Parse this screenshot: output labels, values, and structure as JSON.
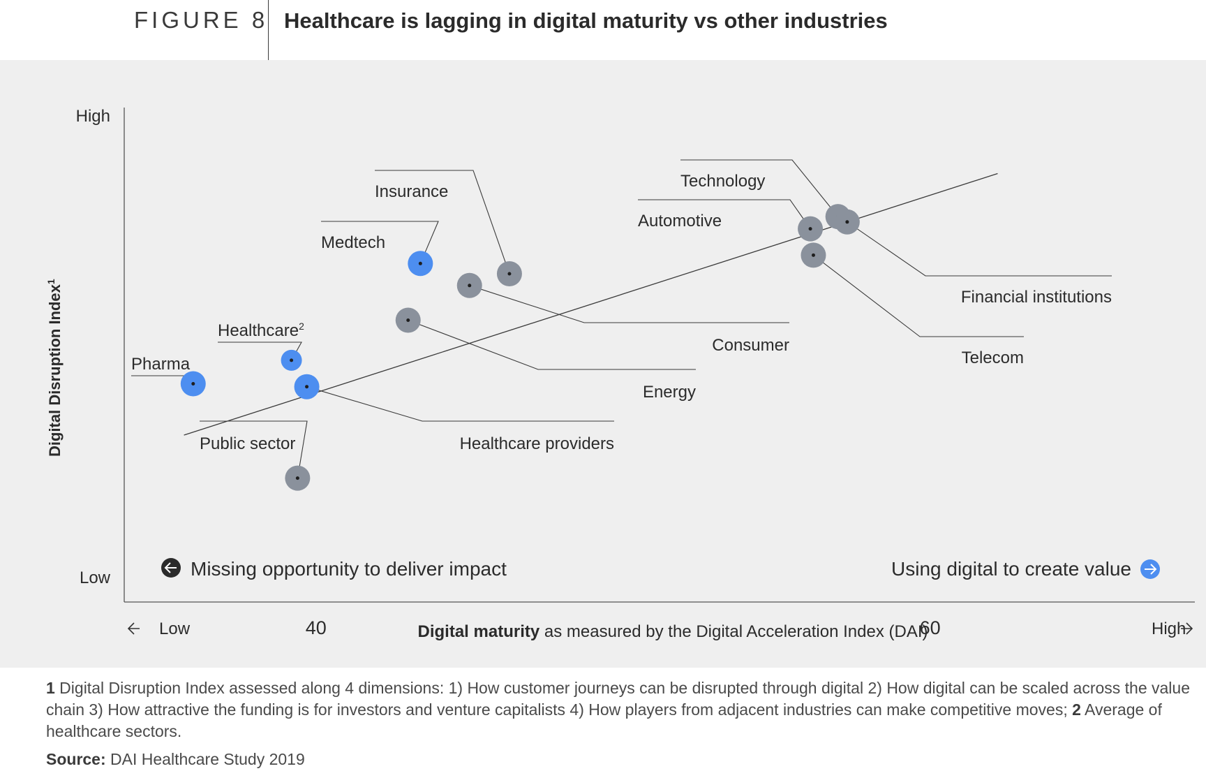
{
  "header": {
    "figure_label": "FIGURE 8",
    "title": "Healthcare is lagging in digital maturity vs other industries"
  },
  "colors": {
    "panel_bg": "#efefef",
    "healthcare_blue": "#4d8ef0",
    "other_gray": "#8a919c",
    "text": "#2b2b2b"
  },
  "chart_data": {
    "type": "scatter",
    "title": "Healthcare is lagging in digital maturity vs other industries",
    "y_axis": {
      "label": "Digital Disruption Index",
      "label_sup": "1",
      "high_label": "High",
      "low_label": "Low"
    },
    "x_axis": {
      "label_bold": "Digital maturity",
      "label_rest": " as measured by the Digital Acceleration Index (DAI)",
      "low_label": "Low",
      "high_label": "High",
      "ticks": [
        40,
        60
      ],
      "xlim": [
        33.8,
        68.6
      ]
    },
    "ylim": [
      0,
      100
    ],
    "grid": false,
    "trend_line": {
      "from": [
        35.7,
        34
      ],
      "to": [
        62.2,
        87.5
      ]
    },
    "points": [
      {
        "name": "Pharma",
        "x": 36.0,
        "y": 44.5,
        "group": "healthcare",
        "label_side": "left"
      },
      {
        "name": "Healthcare",
        "sup": "2",
        "x": 39.2,
        "y": 49.3,
        "group": "healthcare",
        "label_side": "left"
      },
      {
        "name": "Healthcare providers",
        "x": 39.7,
        "y": 43.9,
        "group": "healthcare",
        "label_side": "right"
      },
      {
        "name": "Public sector",
        "x": 39.4,
        "y": 25.2,
        "group": "other",
        "label_side": "left"
      },
      {
        "name": "Medtech",
        "x": 43.4,
        "y": 69.1,
        "group": "healthcare",
        "label_side": "left"
      },
      {
        "name": "Energy",
        "x": 43.0,
        "y": 57.5,
        "group": "other",
        "label_side": "right"
      },
      {
        "name": "Consumer",
        "x": 45.0,
        "y": 64.6,
        "group": "other",
        "label_side": "right"
      },
      {
        "name": "Insurance",
        "x": 46.3,
        "y": 67.0,
        "group": "other",
        "label_side": "left"
      },
      {
        "name": "Automotive",
        "x": 56.1,
        "y": 76.2,
        "group": "other",
        "label_side": "left"
      },
      {
        "name": "Technology",
        "x": 57.0,
        "y": 78.7,
        "group": "other",
        "label_side": "left"
      },
      {
        "name": "Financial institutions",
        "x": 57.3,
        "y": 77.6,
        "group": "other",
        "label_side": "right"
      },
      {
        "name": "Telecom",
        "x": 56.2,
        "y": 70.8,
        "group": "other",
        "label_side": "right"
      }
    ],
    "annotations": {
      "left": "Missing opportunity to deliver impact",
      "right": "Using digital to create value"
    }
  },
  "footnote": {
    "n1": "1",
    "n1_text": " Digital Disruption Index assessed along 4 dimensions: 1) How customer journeys can be disrupted through digital 2) How digital can be scaled across the value chain 3) How attractive the funding is for investors and venture capitalists 4) How players from adjacent industries can make competitive moves;  ",
    "n2": "2",
    "n2_text": " Average of healthcare sectors."
  },
  "source": {
    "label": "Source:",
    "text": " DAI Healthcare Study 2019"
  }
}
